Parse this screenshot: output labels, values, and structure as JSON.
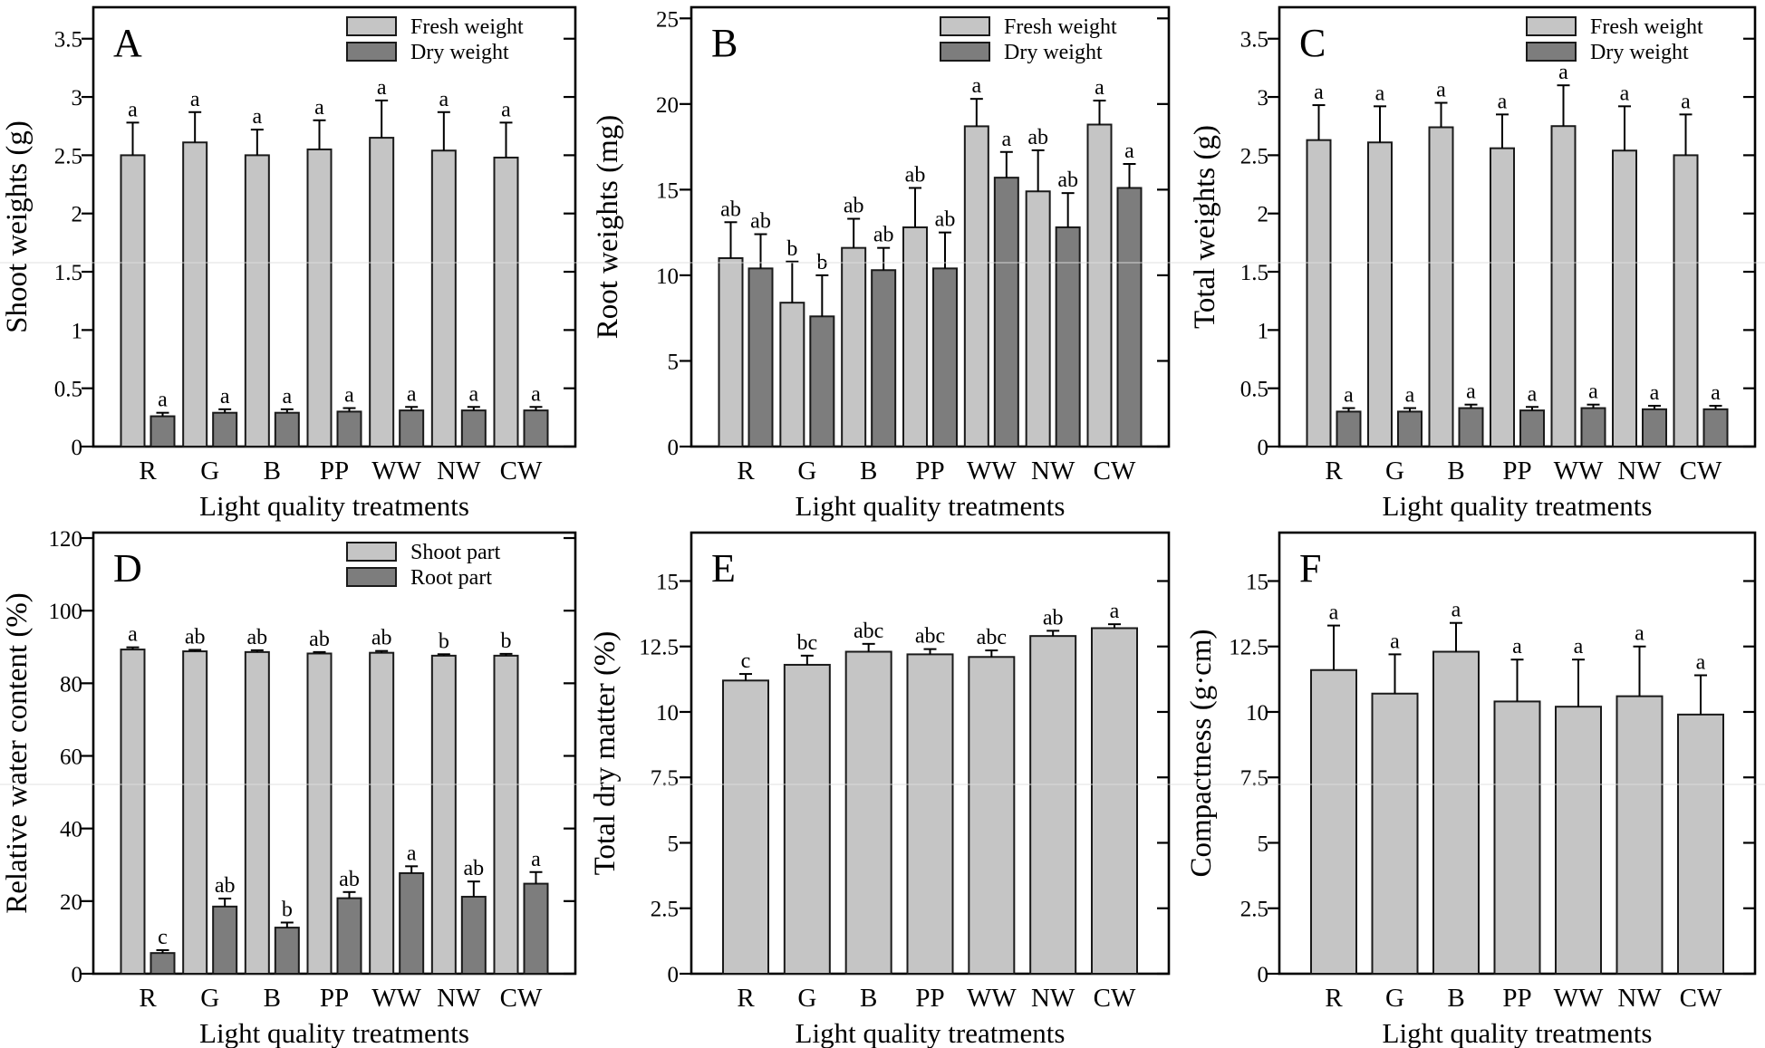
{
  "figure": {
    "background": "#ffffff",
    "x_axis_title": "Light quality treatments",
    "categories": [
      "R",
      "G",
      "B",
      "PP",
      "WW",
      "NW",
      "CW"
    ]
  },
  "colors": {
    "light_bar": "#c5c5c5",
    "dark_bar": "#7d7d7d",
    "bar_border": "#1a1a1a",
    "axis": "#000000",
    "stitch_line": "#dedede"
  },
  "legend_swatches": {
    "fresh": "light-swatch-icon",
    "dry": "dark-swatch-icon"
  },
  "chart_data": [
    {
      "panel": "A",
      "type": "bar",
      "ylabel": "Shoot weights (g)",
      "xlabel": "Light quality treatments",
      "ylim": [
        0,
        3.77
      ],
      "ytick_values": [
        0,
        0.5,
        1,
        1.5,
        2,
        2.5,
        3,
        3.5
      ],
      "ytick_labels": [
        "0",
        "0.5",
        "1",
        "1.5",
        "2",
        "2.5",
        "3",
        "3.5"
      ],
      "grid": false,
      "legend_position": "top-right",
      "legend": [
        "Fresh weight",
        "Dry weight"
      ],
      "categories": [
        "R",
        "G",
        "B",
        "PP",
        "WW",
        "NW",
        "CW"
      ],
      "series": [
        {
          "name": "Fresh weight",
          "color": "light",
          "values": [
            2.5,
            2.61,
            2.5,
            2.55,
            2.65,
            2.54,
            2.48
          ],
          "errors": [
            0.28,
            0.26,
            0.22,
            0.25,
            0.32,
            0.33,
            0.3
          ],
          "letters": [
            "a",
            "a",
            "a",
            "a",
            "a",
            "a",
            "a"
          ]
        },
        {
          "name": "Dry weight",
          "color": "dark",
          "values": [
            0.26,
            0.29,
            0.29,
            0.3,
            0.31,
            0.31,
            0.31
          ],
          "errors": [
            0.03,
            0.03,
            0.03,
            0.03,
            0.03,
            0.03,
            0.03
          ],
          "letters": [
            "a",
            "a",
            "a",
            "a",
            "a",
            "a",
            "a"
          ]
        }
      ]
    },
    {
      "panel": "B",
      "type": "bar",
      "ylabel": "Root weights (mg)",
      "xlabel": "Light quality treatments",
      "ylim": [
        0,
        25.65
      ],
      "ytick_values": [
        0,
        5,
        10,
        15,
        20,
        25
      ],
      "ytick_labels": [
        "0",
        "5",
        "10",
        "15",
        "20",
        "25"
      ],
      "grid": false,
      "legend_position": "top-right",
      "legend": [
        "Fresh weight",
        "Dry weight"
      ],
      "categories": [
        "R",
        "G",
        "B",
        "PP",
        "WW",
        "NW",
        "CW"
      ],
      "series": [
        {
          "name": "Fresh weight",
          "color": "light",
          "values": [
            11.0,
            8.4,
            11.6,
            12.8,
            18.7,
            14.9,
            18.8
          ],
          "errors": [
            2.1,
            2.4,
            1.7,
            2.3,
            1.6,
            2.4,
            1.4
          ],
          "letters": [
            "ab",
            "b",
            "ab",
            "ab",
            "a",
            "ab",
            "a"
          ]
        },
        {
          "name": "Dry weight",
          "color": "dark",
          "values": [
            10.4,
            7.6,
            10.3,
            10.4,
            15.7,
            12.8,
            15.1
          ],
          "errors": [
            2.0,
            2.4,
            1.3,
            2.1,
            1.5,
            2.0,
            1.4
          ],
          "letters": [
            "ab",
            "b",
            "ab",
            "ab",
            "a",
            "ab",
            "a"
          ]
        }
      ]
    },
    {
      "panel": "C",
      "type": "bar",
      "ylabel": "Total weights (g)",
      "xlabel": "Light quality treatments",
      "ylim": [
        0,
        3.77
      ],
      "ytick_values": [
        0,
        0.5,
        1,
        1.5,
        2,
        2.5,
        3,
        3.5
      ],
      "ytick_labels": [
        "0",
        "0.5",
        "1",
        "1.5",
        "2",
        "2.5",
        "3",
        "3.5"
      ],
      "grid": false,
      "legend_position": "top-right",
      "legend": [
        "Fresh weight",
        "Dry weight"
      ],
      "categories": [
        "R",
        "G",
        "B",
        "PP",
        "WW",
        "NW",
        "CW"
      ],
      "series": [
        {
          "name": "Fresh weight",
          "color": "light",
          "values": [
            2.63,
            2.61,
            2.74,
            2.56,
            2.75,
            2.54,
            2.5
          ],
          "errors": [
            0.3,
            0.31,
            0.21,
            0.29,
            0.35,
            0.38,
            0.35
          ],
          "letters": [
            "a",
            "a",
            "a",
            "a",
            "a",
            "a",
            "a"
          ]
        },
        {
          "name": "Dry weight",
          "color": "dark",
          "values": [
            0.3,
            0.3,
            0.33,
            0.31,
            0.33,
            0.32,
            0.32
          ],
          "errors": [
            0.03,
            0.03,
            0.03,
            0.03,
            0.03,
            0.03,
            0.03
          ],
          "letters": [
            "a",
            "a",
            "a",
            "a",
            "a",
            "a",
            "a"
          ]
        }
      ]
    },
    {
      "panel": "D",
      "type": "bar",
      "ylabel": "Relative water content (%)",
      "xlabel": "Light quality treatments",
      "ylim": [
        0,
        121.5
      ],
      "ytick_values": [
        0,
        20,
        40,
        60,
        80,
        100,
        120
      ],
      "ytick_labels": [
        "0",
        "20",
        "40",
        "60",
        "80",
        "100",
        "120"
      ],
      "grid": false,
      "legend_position": "top-right",
      "legend": [
        "Shoot part",
        "Root part"
      ],
      "categories": [
        "R",
        "G",
        "B",
        "PP",
        "WW",
        "NW",
        "CW"
      ],
      "series": [
        {
          "name": "Shoot part",
          "color": "light",
          "values": [
            89.3,
            88.8,
            88.6,
            88.2,
            88.4,
            87.6,
            87.6
          ],
          "errors": [
            0.6,
            0.4,
            0.5,
            0.4,
            0.5,
            0.4,
            0.5
          ],
          "letters": [
            "a",
            "ab",
            "ab",
            "ab",
            "ab",
            "b",
            "b"
          ]
        },
        {
          "name": "Root part",
          "color": "dark",
          "values": [
            5.7,
            18.5,
            12.7,
            20.8,
            27.7,
            21.2,
            24.8
          ],
          "errors": [
            0.8,
            2.2,
            1.4,
            1.7,
            1.9,
            4.2,
            3.2
          ],
          "letters": [
            "c",
            "ab",
            "b",
            "ab",
            "a",
            "ab",
            "a"
          ]
        }
      ]
    },
    {
      "panel": "E",
      "type": "bar",
      "ylabel": "Total dry matter (%)",
      "xlabel": "Light quality treatments",
      "ylim": [
        0,
        16.85
      ],
      "ytick_values": [
        0,
        2.5,
        5,
        7.5,
        10,
        12.5,
        15
      ],
      "ytick_labels": [
        "0",
        "2.5",
        "5",
        "7.5",
        "10",
        "12.5",
        "15"
      ],
      "grid": false,
      "legend_position": "none",
      "legend": [],
      "categories": [
        "R",
        "G",
        "B",
        "PP",
        "WW",
        "NW",
        "CW"
      ],
      "series": [
        {
          "name": "Total dry matter",
          "color": "light",
          "values": [
            11.2,
            11.8,
            12.3,
            12.2,
            12.1,
            12.9,
            13.2
          ],
          "errors": [
            0.25,
            0.35,
            0.3,
            0.2,
            0.25,
            0.2,
            0.15
          ],
          "letters": [
            "c",
            "bc",
            "abc",
            "abc",
            "abc",
            "ab",
            "a"
          ]
        }
      ]
    },
    {
      "panel": "F",
      "type": "bar",
      "ylabel": "Compactness (g·cm)",
      "xlabel": "Light quality treatments",
      "ylim": [
        0,
        16.85
      ],
      "ytick_values": [
        0,
        2.5,
        5,
        7.5,
        10,
        12.5,
        15
      ],
      "ytick_labels": [
        "0",
        "2.5",
        "5",
        "7.5",
        "10",
        "12.5",
        "15"
      ],
      "grid": false,
      "legend_position": "none",
      "legend": [],
      "categories": [
        "R",
        "G",
        "B",
        "PP",
        "WW",
        "NW",
        "CW"
      ],
      "series": [
        {
          "name": "Compactness",
          "color": "light",
          "values": [
            11.6,
            10.7,
            12.3,
            10.4,
            10.2,
            10.6,
            9.9
          ],
          "errors": [
            1.7,
            1.5,
            1.1,
            1.6,
            1.8,
            1.9,
            1.5
          ],
          "letters": [
            "a",
            "a",
            "a",
            "a",
            "a",
            "a",
            "a"
          ]
        }
      ]
    }
  ]
}
